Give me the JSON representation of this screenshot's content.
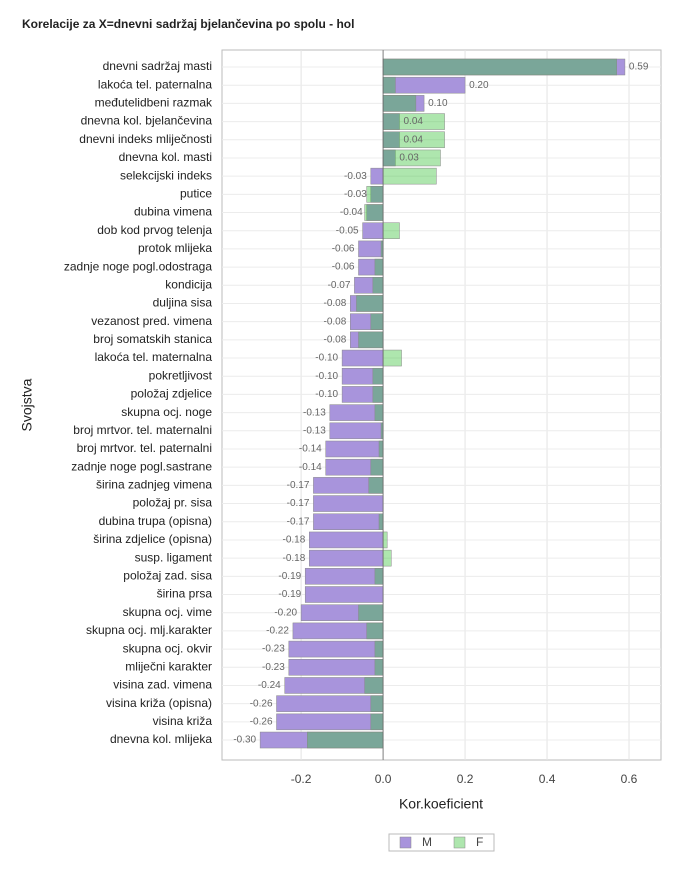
{
  "chart_data": {
    "type": "bar",
    "orientation": "horizontal",
    "title": "Korelacije za X=dnevni sadržaj bjelančevina po spolu - hol",
    "x_label": "Kor.koeficient",
    "y_label": "Svojstva",
    "categories": [
      "dnevni sadržaj masti",
      "lakoća tel. paternalna",
      "međutelidbeni razmak",
      "dnevna kol. bjelančevina",
      "dnevni indeks mliječnosti",
      "dnevna kol. masti",
      "selekcijski indeks",
      "putice",
      "dubina vimena",
      "dob kod prvog telenja",
      "protok mlijeka",
      "zadnje noge pogl.odostraga",
      "kondicija",
      "duljina sisa",
      "vezanost pred. vimena",
      "broj somatskih stanica",
      "lakoća tel. maternalna",
      "pokretljivost",
      "položaj zdjelice",
      "skupna ocj. noge",
      "broj mrtvor. tel. maternalni",
      "broj mrtvor. tel. paternalni",
      "zadnje noge pogl.sastrane",
      "širina zadnjeg vimena",
      "položaj pr. sisa",
      "dubina trupa (opisna)",
      "širina zdjelice (opisna)",
      "susp. ligament",
      "položaj zad. sisa",
      "širina prsa",
      "skupna ocj. vime",
      "skupna ocj. mlj.karakter",
      "skupna ocj. okvir",
      "mliječni karakter",
      "visina zad. vimena",
      "visina križa (opisna)",
      "visina križa",
      "dnevna kol. mlijeka"
    ],
    "series": [
      {
        "name": "M",
        "color": "#a894dc",
        "values": [
          0.59,
          0.2,
          0.1,
          0.04,
          0.04,
          0.03,
          -0.03,
          -0.03,
          -0.04,
          -0.05,
          -0.06,
          -0.06,
          -0.07,
          -0.08,
          -0.08,
          -0.08,
          -0.1,
          -0.1,
          -0.1,
          -0.13,
          -0.13,
          -0.14,
          -0.14,
          -0.17,
          -0.17,
          -0.17,
          -0.18,
          -0.18,
          -0.19,
          -0.19,
          -0.2,
          -0.22,
          -0.23,
          -0.23,
          -0.24,
          -0.26,
          -0.26,
          -0.3
        ],
        "value_labels": [
          "0.59",
          "0.20",
          "0.10",
          "0.04",
          "0.04",
          "0.03",
          "-0.03",
          "-0.03",
          "-0.04",
          "-0.05",
          "-0.06",
          "-0.06",
          "-0.07",
          "-0.08",
          "-0.08",
          "-0.08",
          "-0.10",
          "-0.10",
          "-0.10",
          "-0.13",
          "-0.13",
          "-0.14",
          "-0.14",
          "-0.17",
          "-0.17",
          "-0.17",
          "-0.18",
          "-0.18",
          "-0.19",
          "-0.19",
          "-0.20",
          "-0.22",
          "-0.23",
          "-0.23",
          "-0.24",
          "-0.26",
          "-0.26",
          "-0.30"
        ]
      },
      {
        "name": "F",
        "color": "#34c034",
        "values": [
          0.57,
          0.03,
          0.08,
          0.15,
          0.15,
          0.14,
          0.13,
          -0.04,
          -0.045,
          0.04,
          -0.005,
          -0.02,
          -0.025,
          -0.065,
          -0.03,
          -0.06,
          0.045,
          -0.025,
          -0.025,
          -0.02,
          -0.005,
          -0.01,
          -0.03,
          -0.035,
          0,
          -0.01,
          0.01,
          0.02,
          -0.02,
          0,
          -0.06,
          -0.04,
          -0.02,
          -0.02,
          -0.045,
          -0.03,
          -0.03,
          -0.185
        ]
      }
    ],
    "xlim": [
      -0.393,
      0.678
    ],
    "xticks": [
      -0.2,
      {
        "value": 0,
        "label": "0.0"
      },
      0.2,
      0.4,
      0.6
    ],
    "grid": true
  }
}
